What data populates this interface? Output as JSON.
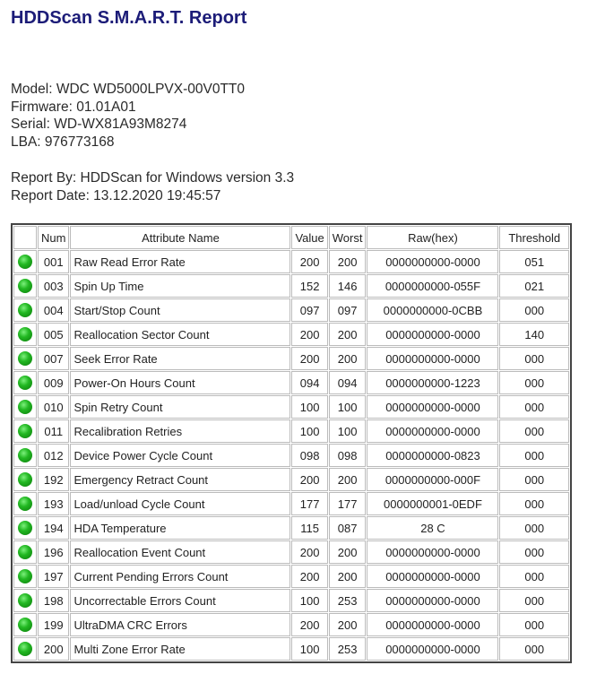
{
  "title": "HDDScan S.M.A.R.T. Report",
  "drive": {
    "model": "Model: WDC WD5000LPVX-00V0TT0",
    "firmware": "Firmware: 01.01A01",
    "serial": "Serial: WD-WX81A93M8274",
    "lba": "LBA: 976773168"
  },
  "report": {
    "by": "Report By: HDDScan for Windows version 3.3",
    "date": "Report Date: 13.12.2020 19:45:57"
  },
  "table": {
    "headers": [
      "",
      "Num",
      "Attribute Name",
      "Value",
      "Worst",
      "Raw(hex)",
      "Threshold"
    ],
    "status_color": "#1fb51f",
    "rows": [
      {
        "status": "ok",
        "num": "001",
        "name": "Raw Read Error Rate",
        "value": "200",
        "worst": "200",
        "raw": "0000000000-0000",
        "threshold": "051"
      },
      {
        "status": "ok",
        "num": "003",
        "name": "Spin Up Time",
        "value": "152",
        "worst": "146",
        "raw": "0000000000-055F",
        "threshold": "021"
      },
      {
        "status": "ok",
        "num": "004",
        "name": "Start/Stop Count",
        "value": "097",
        "worst": "097",
        "raw": "0000000000-0CBB",
        "threshold": "000"
      },
      {
        "status": "ok",
        "num": "005",
        "name": "Reallocation Sector Count",
        "value": "200",
        "worst": "200",
        "raw": "0000000000-0000",
        "threshold": "140"
      },
      {
        "status": "ok",
        "num": "007",
        "name": "Seek Error Rate",
        "value": "200",
        "worst": "200",
        "raw": "0000000000-0000",
        "threshold": "000"
      },
      {
        "status": "ok",
        "num": "009",
        "name": "Power-On Hours Count",
        "value": "094",
        "worst": "094",
        "raw": "0000000000-1223",
        "threshold": "000"
      },
      {
        "status": "ok",
        "num": "010",
        "name": "Spin Retry Count",
        "value": "100",
        "worst": "100",
        "raw": "0000000000-0000",
        "threshold": "000"
      },
      {
        "status": "ok",
        "num": "011",
        "name": "Recalibration Retries",
        "value": "100",
        "worst": "100",
        "raw": "0000000000-0000",
        "threshold": "000"
      },
      {
        "status": "ok",
        "num": "012",
        "name": "Device Power Cycle Count",
        "value": "098",
        "worst": "098",
        "raw": "0000000000-0823",
        "threshold": "000"
      },
      {
        "status": "ok",
        "num": "192",
        "name": "Emergency Retract Count",
        "value": "200",
        "worst": "200",
        "raw": "0000000000-000F",
        "threshold": "000"
      },
      {
        "status": "ok",
        "num": "193",
        "name": "Load/unload Cycle Count",
        "value": "177",
        "worst": "177",
        "raw": "0000000001-0EDF",
        "threshold": "000"
      },
      {
        "status": "ok",
        "num": "194",
        "name": "HDA Temperature",
        "value": "115",
        "worst": "087",
        "raw": "28 C",
        "threshold": "000"
      },
      {
        "status": "ok",
        "num": "196",
        "name": "Reallocation Event Count",
        "value": "200",
        "worst": "200",
        "raw": "0000000000-0000",
        "threshold": "000"
      },
      {
        "status": "ok",
        "num": "197",
        "name": "Current Pending Errors Count",
        "value": "200",
        "worst": "200",
        "raw": "0000000000-0000",
        "threshold": "000"
      },
      {
        "status": "ok",
        "num": "198",
        "name": "Uncorrectable Errors Count",
        "value": "100",
        "worst": "253",
        "raw": "0000000000-0000",
        "threshold": "000"
      },
      {
        "status": "ok",
        "num": "199",
        "name": "UltraDMA CRC Errors",
        "value": "200",
        "worst": "200",
        "raw": "0000000000-0000",
        "threshold": "000"
      },
      {
        "status": "ok",
        "num": "200",
        "name": "Multi Zone Error Rate",
        "value": "100",
        "worst": "253",
        "raw": "0000000000-0000",
        "threshold": "000"
      }
    ]
  }
}
